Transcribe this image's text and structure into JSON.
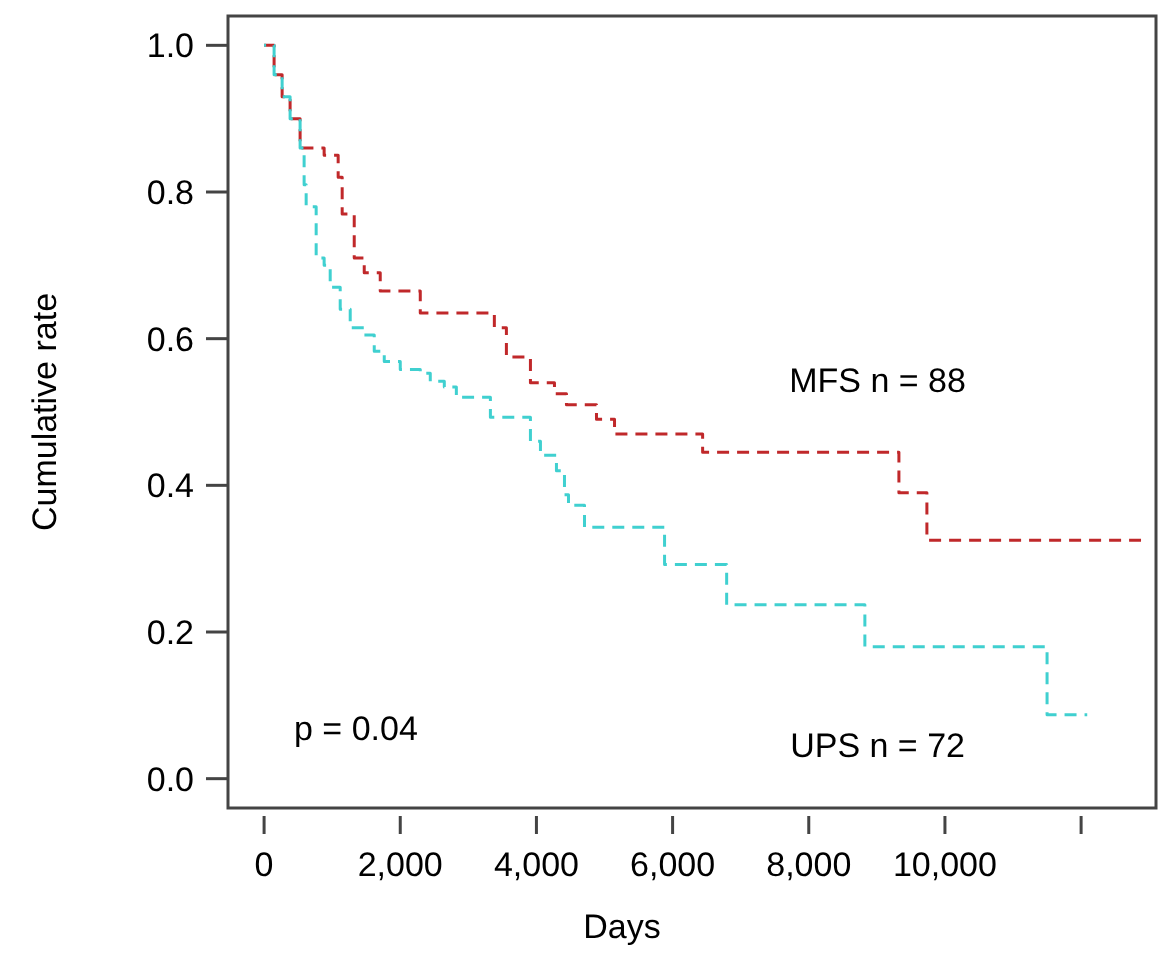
{
  "chart_data": {
    "type": "step",
    "xlabel": "Days",
    "ylabel": "Cumulative rate",
    "annotations": [
      "p = 0.04"
    ],
    "xlim": [
      -530,
      13100
    ],
    "ylim": [
      -0.04,
      1.04
    ],
    "xticks": [
      0,
      {
        "value": 2000,
        "label": "2,000"
      },
      {
        "value": 4000,
        "label": "4,000"
      },
      {
        "value": 6000,
        "label": "6,000"
      },
      {
        "value": 8000,
        "label": "8,000"
      },
      {
        "value": 10000,
        "label": "10,000"
      },
      {
        "value": 12000,
        "label": null
      }
    ],
    "yticks": [
      {
        "value": 0,
        "label": "0.0"
      },
      {
        "value": 0.2,
        "label": "0.2"
      },
      {
        "value": 0.4,
        "label": "0.4"
      },
      {
        "value": 0.6,
        "label": "0.6"
      },
      {
        "value": 0.8,
        "label": "0.8"
      },
      {
        "value": 1,
        "label": "1.0"
      }
    ],
    "grid": false,
    "line_style": "dashed",
    "series": [
      {
        "name": "MFS n = 88",
        "color": "#c0282a",
        "x": [
          0,
          147,
          265,
          382,
          529,
          882,
          1088,
          1147,
          1324,
          1471,
          1706,
          2294,
          3382,
          3559,
          3912,
          4265,
          4441,
          4882,
          5147,
          6441,
          9324,
          9735,
          12880
        ],
        "values": [
          1.0,
          0.96,
          0.93,
          0.9,
          0.86,
          0.85,
          0.82,
          0.77,
          0.71,
          0.69,
          0.665,
          0.635,
          0.615,
          0.575,
          0.54,
          0.525,
          0.51,
          0.49,
          0.47,
          0.445,
          0.39,
          0.325,
          0.325
        ]
      },
      {
        "name": "UPS n = 72",
        "color": "#40d0d0",
        "x": [
          0,
          147,
          265,
          382,
          529,
          588,
          618,
          765,
          882,
          971,
          1118,
          1265,
          1471,
          1618,
          1765,
          2000,
          2294,
          2441,
          2647,
          2824,
          3324,
          3912,
          4059,
          4294,
          4412,
          4471,
          4706,
          5882,
          6794,
          8824,
          11500,
          12090
        ],
        "values": [
          1.0,
          0.96,
          0.93,
          0.9,
          0.86,
          0.81,
          0.78,
          0.71,
          0.7,
          0.67,
          0.64,
          0.615,
          0.605,
          0.583,
          0.569,
          0.558,
          0.553,
          0.542,
          0.534,
          0.52,
          0.493,
          0.46,
          0.441,
          0.42,
          0.387,
          0.373,
          0.343,
          0.292,
          0.237,
          0.18,
          0.087,
          0.087
        ]
      }
    ]
  }
}
